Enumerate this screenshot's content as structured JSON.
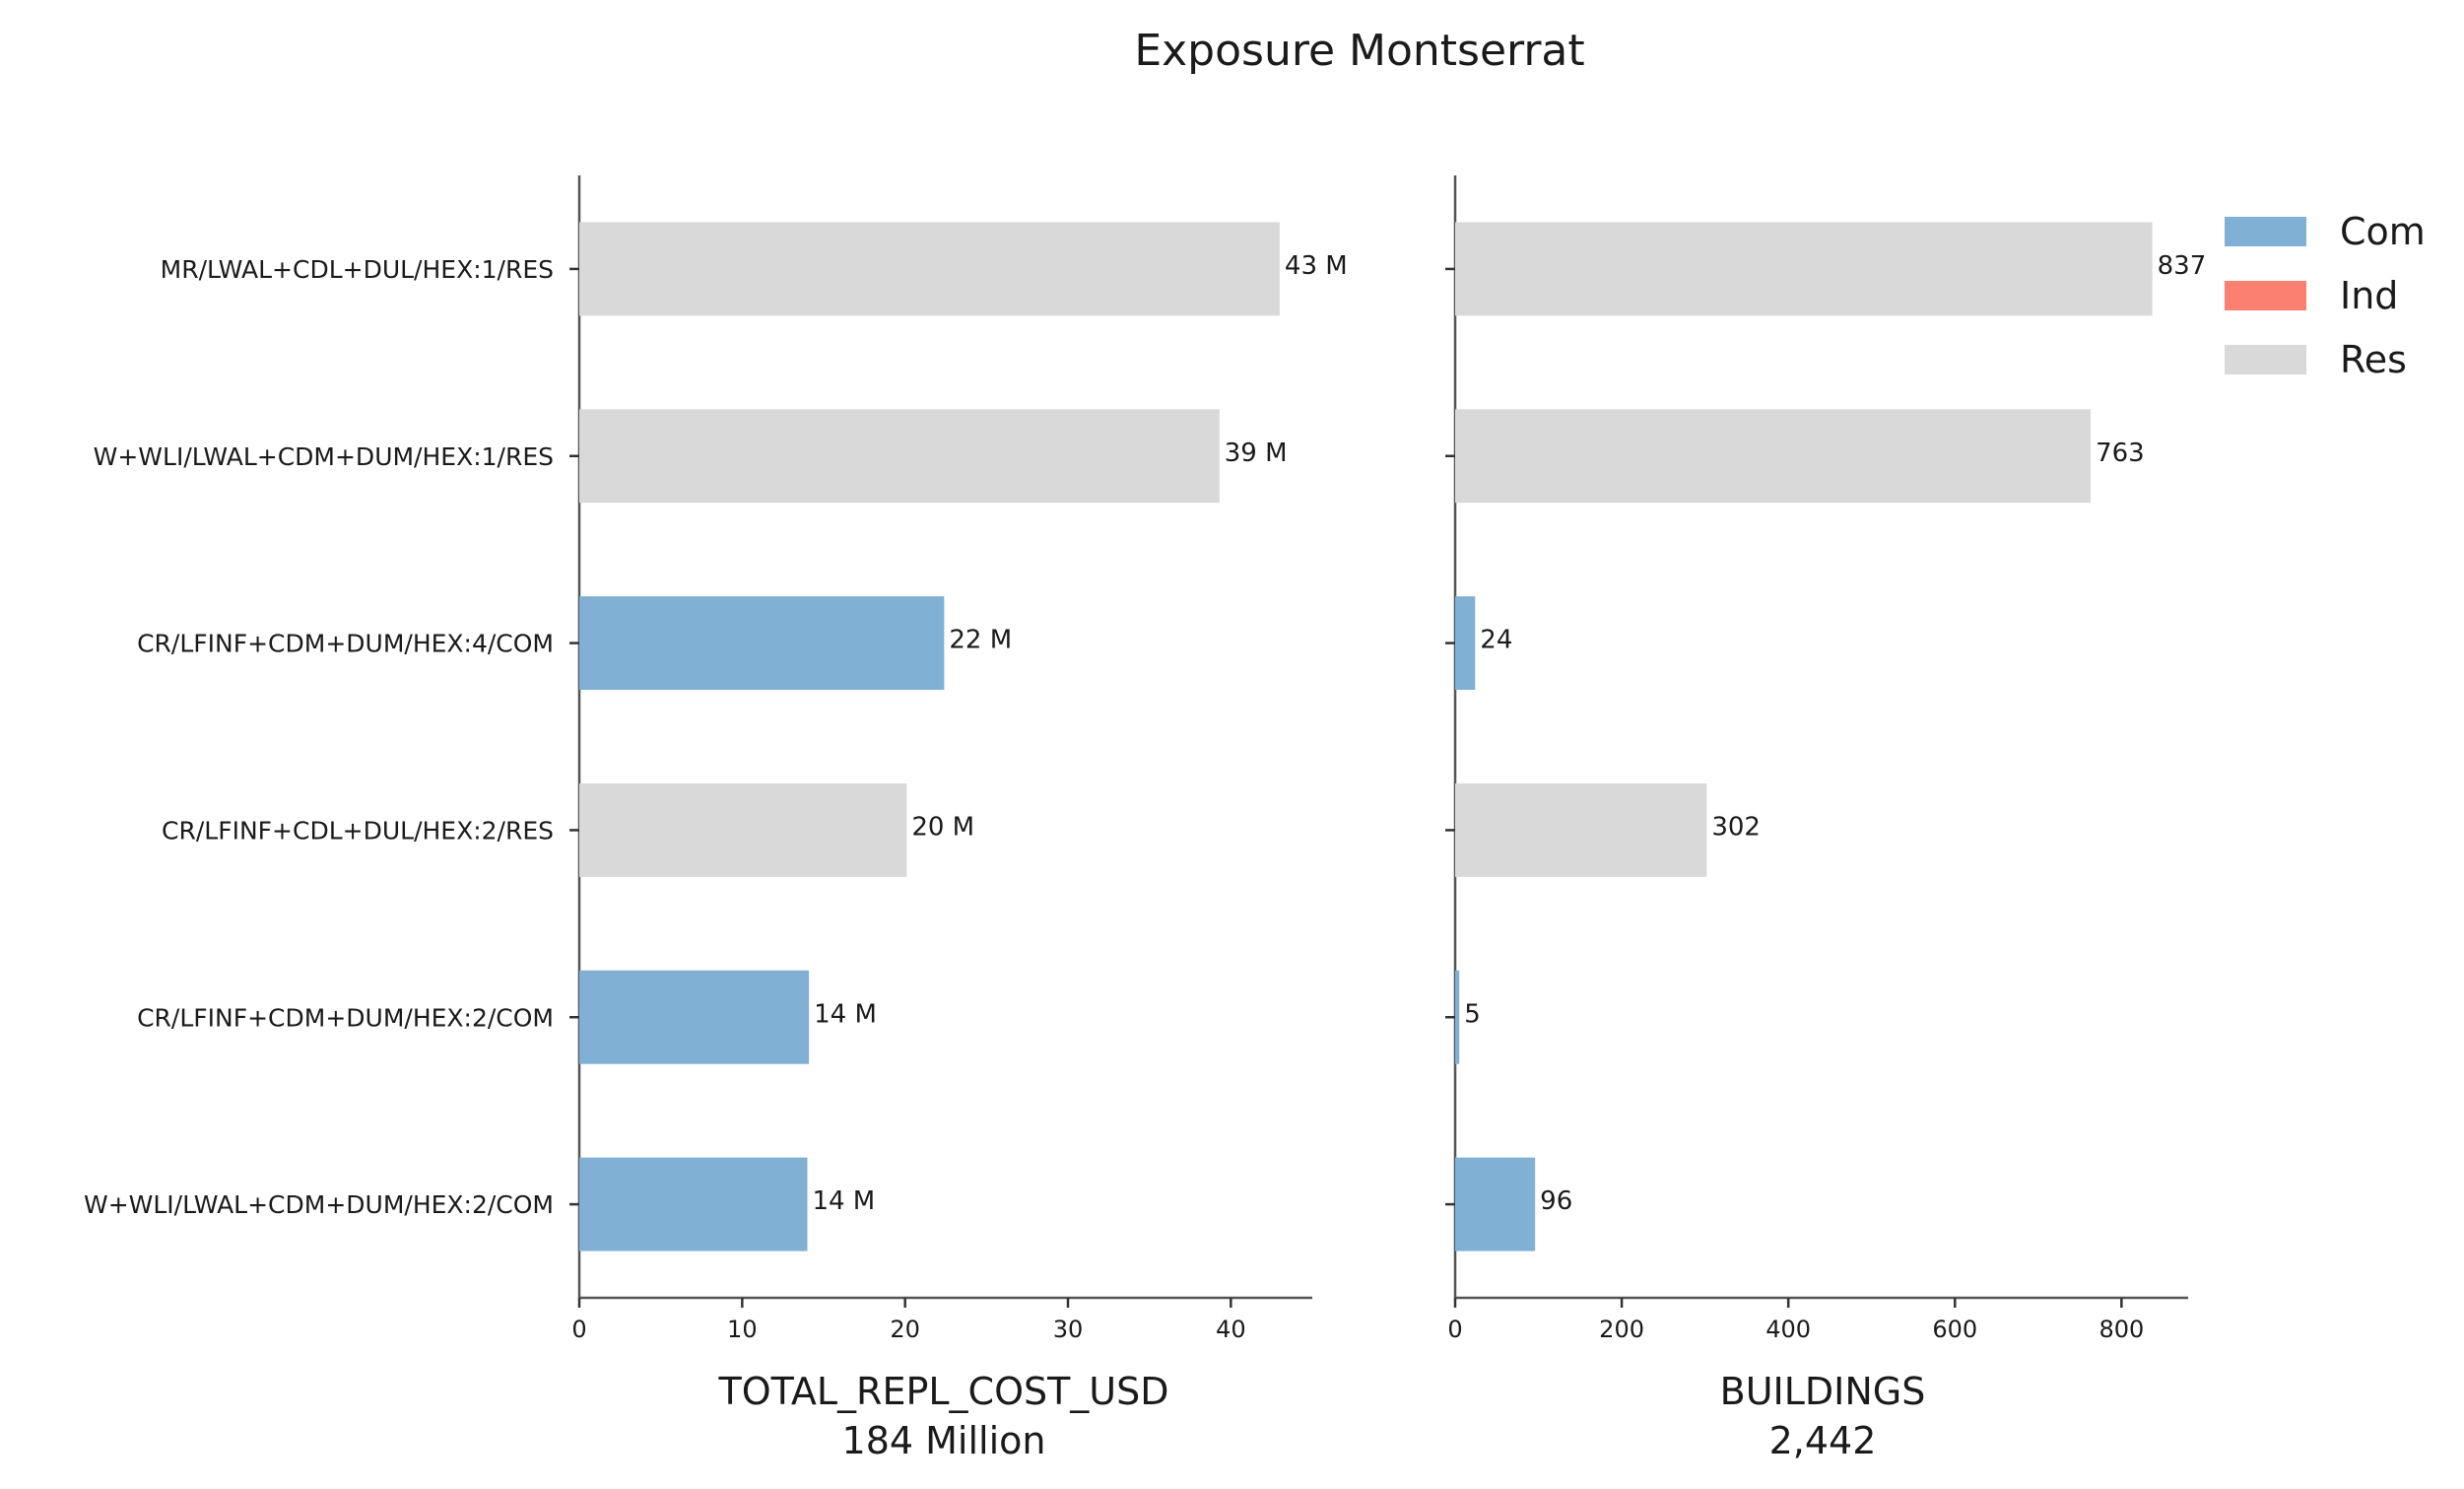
{
  "chart_data": {
    "type": "bar",
    "orientation": "horizontal",
    "title": "Exposure Montserrat",
    "categories": [
      "MR/LWAL+CDL+DUL/HEX:1/RES",
      "W+WLI/LWAL+CDM+DUM/HEX:1/RES",
      "CR/LFINF+CDM+DUM/HEX:4/COM",
      "CR/LFINF+CDL+DUL/HEX:2/RES",
      "CR/LFINF+CDM+DUM/HEX:2/COM",
      "W+WLI/LWAL+CDM+DUM/HEX:2/COM"
    ],
    "occupancy": [
      "Res",
      "Res",
      "Com",
      "Res",
      "Com",
      "Com"
    ],
    "legend": {
      "placement": "top-right",
      "entries": [
        {
          "name": "Com",
          "color": "#80b0d3"
        },
        {
          "name": "Ind",
          "color": "#fb8072"
        },
        {
          "name": "Res",
          "color": "#d9d9d9"
        }
      ]
    },
    "panels": [
      {
        "xlabel": "TOTAL_REPL_COST_USD",
        "subtitle": "184 Million",
        "values": [
          43,
          39.3,
          22.4,
          20.1,
          14.1,
          14.0
        ],
        "value_labels": [
          "43 M",
          "39 M",
          "22 M",
          "20 M",
          "14 M",
          "14 M"
        ],
        "xlim": [
          0,
          45
        ],
        "ticks": [
          0,
          10,
          20,
          30,
          40
        ],
        "tick_labels": [
          "0",
          "10",
          "20",
          "30",
          "40"
        ]
      },
      {
        "xlabel": "BUILDINGS",
        "subtitle": "2,442",
        "values": [
          837,
          763,
          24,
          302,
          5,
          96
        ],
        "value_labels": [
          "837",
          "763",
          "24",
          "302",
          "5",
          "96"
        ],
        "xlim": [
          0,
          880
        ],
        "ticks": [
          0,
          200,
          400,
          600,
          800
        ],
        "tick_labels": [
          "0",
          "200",
          "400",
          "600",
          "800"
        ]
      }
    ],
    "grid": false
  }
}
